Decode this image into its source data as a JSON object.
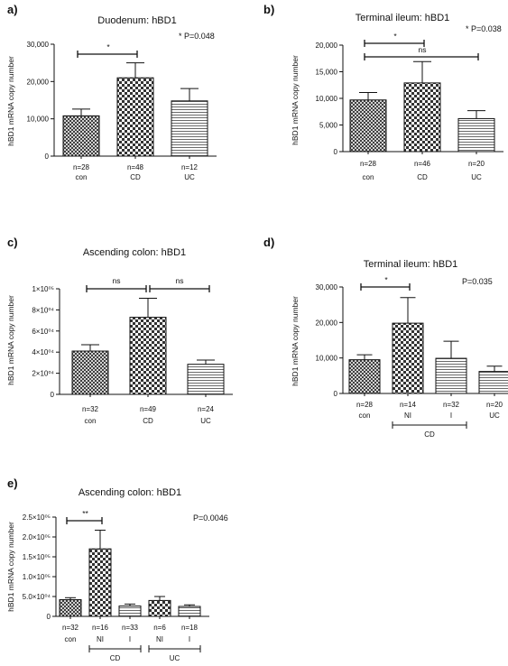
{
  "chart_data": [
    {
      "type": "bar",
      "panel": "a)",
      "title": "Duodenum: hBD1",
      "ylabel": "hBD1 mRNA copy number",
      "pvalue": "* P=0.048",
      "ylim": [
        0,
        30000
      ],
      "yticks": [
        "0",
        "10,000",
        "20,000",
        "30,000"
      ],
      "categories": [
        "con",
        "CD",
        "UC"
      ],
      "n_labels": [
        "n=28",
        "n=48",
        "n=12"
      ],
      "patterns": [
        "crosshatch",
        "checker",
        "hlines"
      ],
      "values": [
        10800,
        21000,
        14800
      ],
      "errors": [
        1800,
        4000,
        3300
      ],
      "brackets": [
        {
          "from": 0,
          "to": 1,
          "label": "*"
        }
      ],
      "groups": []
    },
    {
      "type": "bar",
      "panel": "b)",
      "title": "Terminal ileum: hBD1",
      "ylabel": "hBD1 mRNA copy number",
      "pvalue": "* P=0.038",
      "ylim": [
        0,
        20000
      ],
      "yticks": [
        "0",
        "5,000",
        "10,000",
        "15,000",
        "20,000"
      ],
      "categories": [
        "con",
        "CD",
        "UC"
      ],
      "n_labels": [
        "n=28",
        "n=46",
        "n=20"
      ],
      "patterns": [
        "crosshatch",
        "checker",
        "hlines"
      ],
      "values": [
        9700,
        12900,
        6200
      ],
      "errors": [
        1400,
        4000,
        1500
      ],
      "brackets": [
        {
          "from": 0,
          "to": 1,
          "label": "*"
        },
        {
          "from": 0,
          "to": 2,
          "label": "ns"
        }
      ],
      "groups": []
    },
    {
      "type": "bar",
      "panel": "c)",
      "title": "Ascending colon: hBD1",
      "ylabel": "hBD1 mRNA copy number",
      "pvalue": "",
      "ylim": [
        0,
        100000
      ],
      "yticks": [
        "0",
        "2×10⁰⁴",
        "4×10⁰⁴",
        "6×10⁰⁴",
        "8×10⁰⁴",
        "1×10⁰⁵"
      ],
      "categories": [
        "con",
        "CD",
        "UC"
      ],
      "n_labels": [
        "n=32",
        "n=49",
        "n=24"
      ],
      "patterns": [
        "crosshatch",
        "checker",
        "hlines"
      ],
      "values": [
        41000,
        73000,
        28500
      ],
      "errors": [
        6000,
        18000,
        4000
      ],
      "brackets": [
        {
          "from": 0,
          "to": 1,
          "label": "ns"
        },
        {
          "from": 1,
          "to": 2,
          "label": "ns"
        }
      ],
      "groups": []
    },
    {
      "type": "bar",
      "panel": "d)",
      "title": "Terminal ileum: hBD1",
      "ylabel": "hBD1 mRNA copy number",
      "pvalue": "P=0.035",
      "ylim": [
        0,
        30000
      ],
      "yticks": [
        "0",
        "10,000",
        "20,000",
        "30,000"
      ],
      "categories": [
        "con",
        "NI",
        "I",
        "UC"
      ],
      "n_labels": [
        "n=28",
        "n=14",
        "n=32",
        "n=20"
      ],
      "patterns": [
        "crosshatch",
        "checker",
        "hlines",
        "hlines"
      ],
      "values": [
        9500,
        19800,
        9900,
        6200
      ],
      "errors": [
        1400,
        7200,
        4800,
        1500
      ],
      "brackets": [
        {
          "from": 0,
          "to": 1,
          "label": "*"
        }
      ],
      "groups": [
        {
          "from": 1,
          "to": 2,
          "label": "CD"
        }
      ]
    },
    {
      "type": "bar",
      "panel": "e)",
      "title": "Ascending colon: hBD1",
      "ylabel": "hBD1 mRNA copy number",
      "pvalue": "P=0.0046",
      "ylim": [
        0,
        250000
      ],
      "yticks": [
        "0",
        "5.0×10⁰⁴",
        "1.0×10⁰⁵",
        "1.5×10⁰⁵",
        "2.0×10⁰⁵",
        "2.5×10⁰⁵"
      ],
      "categories": [
        "con",
        "NI",
        "I",
        "NI",
        "I"
      ],
      "n_labels": [
        "n=32",
        "n=16",
        "n=33",
        "n=6",
        "n=18"
      ],
      "patterns": [
        "crosshatch",
        "checker",
        "hlines",
        "checker",
        "hlines"
      ],
      "values": [
        42000,
        170000,
        26000,
        40000,
        25000
      ],
      "errors": [
        5000,
        47000,
        5000,
        10000,
        4000
      ],
      "brackets": [
        {
          "from": 0,
          "to": 1,
          "label": "**"
        }
      ],
      "groups": [
        {
          "from": 1,
          "to": 2,
          "label": "CD"
        },
        {
          "from": 3,
          "to": 4,
          "label": "UC"
        }
      ]
    }
  ]
}
